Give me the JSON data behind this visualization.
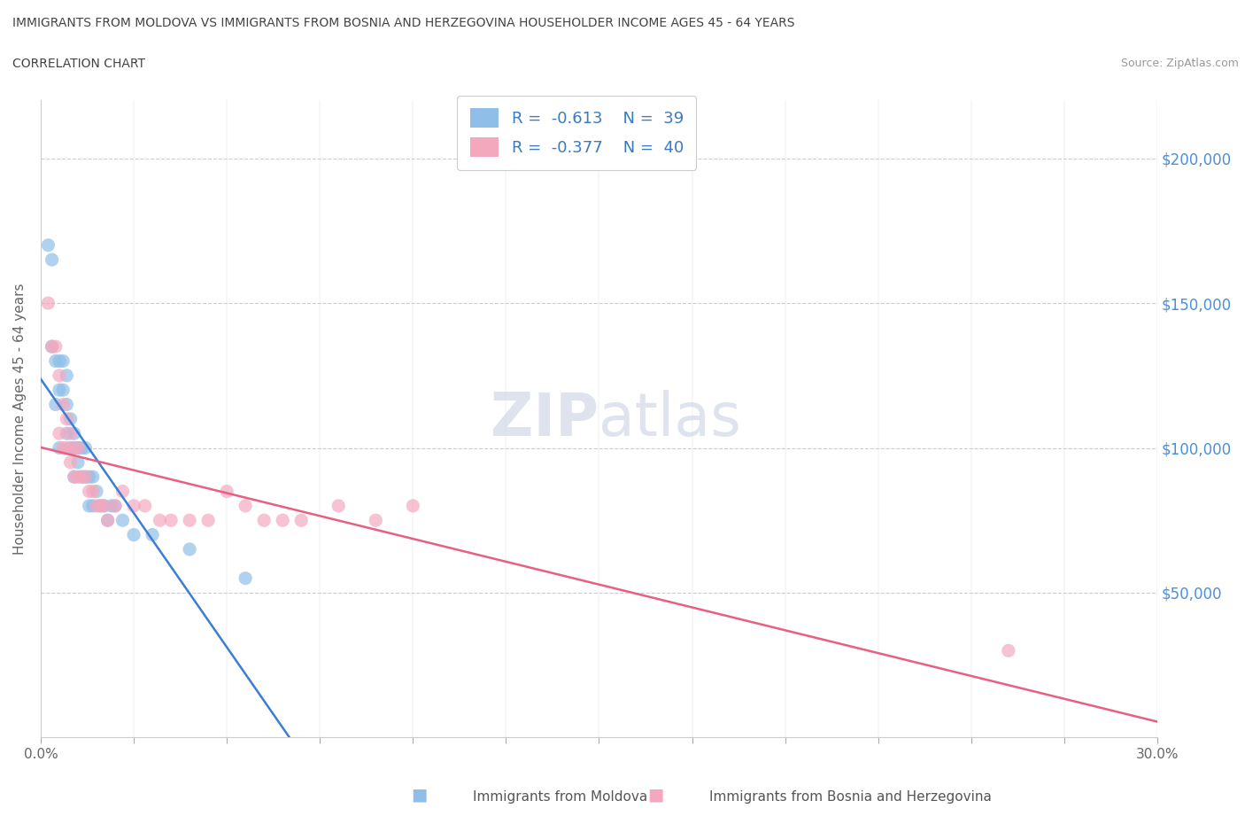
{
  "title_line1": "IMMIGRANTS FROM MOLDOVA VS IMMIGRANTS FROM BOSNIA AND HERZEGOVINA HOUSEHOLDER INCOME AGES 45 - 64 YEARS",
  "title_line2": "CORRELATION CHART",
  "source_text": "Source: ZipAtlas.com",
  "ylabel": "Householder Income Ages 45 - 64 years",
  "xlim": [
    0.0,
    0.3
  ],
  "ylim": [
    0,
    220000
  ],
  "yticks": [
    50000,
    100000,
    150000,
    200000
  ],
  "ytick_labels": [
    "$50,000",
    "$100,000",
    "$150,000",
    "$200,000"
  ],
  "xticks": [
    0.0,
    0.025,
    0.05,
    0.075,
    0.1,
    0.125,
    0.15,
    0.175,
    0.2,
    0.225,
    0.25,
    0.275,
    0.3
  ],
  "xtick_labels": [
    "0.0%",
    "",
    "",
    "",
    "",
    "",
    "",
    "",
    "",
    "",
    "",
    "",
    "30.0%"
  ],
  "moldova_color": "#8fbfe8",
  "bosnia_color": "#f4a8be",
  "moldova_line_color": "#3a7fd4",
  "bosnia_line_color": "#e86080",
  "R_moldova": -0.613,
  "N_moldova": 39,
  "R_bosnia": -0.377,
  "N_bosnia": 40,
  "legend_label_moldova": "Immigrants from Moldova",
  "legend_label_bosnia": "Immigrants from Bosnia and Herzegovina",
  "moldova_x": [
    0.002,
    0.003,
    0.003,
    0.004,
    0.004,
    0.005,
    0.005,
    0.005,
    0.006,
    0.006,
    0.007,
    0.007,
    0.007,
    0.008,
    0.008,
    0.009,
    0.009,
    0.009,
    0.01,
    0.01,
    0.011,
    0.011,
    0.012,
    0.012,
    0.013,
    0.013,
    0.014,
    0.014,
    0.015,
    0.016,
    0.017,
    0.018,
    0.019,
    0.02,
    0.022,
    0.025,
    0.03,
    0.04,
    0.055
  ],
  "moldova_y": [
    170000,
    165000,
    135000,
    130000,
    115000,
    130000,
    120000,
    100000,
    130000,
    120000,
    125000,
    115000,
    105000,
    110000,
    100000,
    105000,
    100000,
    90000,
    100000,
    95000,
    100000,
    90000,
    100000,
    90000,
    90000,
    80000,
    90000,
    80000,
    85000,
    80000,
    80000,
    75000,
    80000,
    80000,
    75000,
    70000,
    70000,
    65000,
    55000
  ],
  "bosnia_x": [
    0.002,
    0.003,
    0.004,
    0.005,
    0.005,
    0.006,
    0.006,
    0.007,
    0.007,
    0.008,
    0.008,
    0.009,
    0.009,
    0.01,
    0.01,
    0.011,
    0.012,
    0.013,
    0.014,
    0.015,
    0.016,
    0.017,
    0.018,
    0.02,
    0.022,
    0.025,
    0.028,
    0.032,
    0.035,
    0.04,
    0.045,
    0.05,
    0.055,
    0.06,
    0.065,
    0.07,
    0.08,
    0.09,
    0.1,
    0.26
  ],
  "bosnia_y": [
    150000,
    135000,
    135000,
    125000,
    105000,
    115000,
    100000,
    110000,
    100000,
    105000,
    95000,
    100000,
    90000,
    100000,
    90000,
    90000,
    90000,
    85000,
    85000,
    80000,
    80000,
    80000,
    75000,
    80000,
    85000,
    80000,
    80000,
    75000,
    75000,
    75000,
    75000,
    85000,
    80000,
    75000,
    75000,
    75000,
    80000,
    75000,
    80000,
    30000
  ]
}
